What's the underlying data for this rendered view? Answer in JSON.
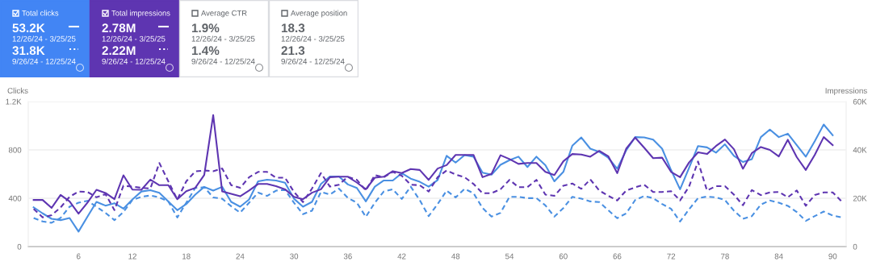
{
  "chart_data": [
    {
      "type": "other",
      "colors": [
        "#4285f4",
        "#5e35b1",
        "#ffffff",
        "#ffffff"
      ],
      "annotations": [
        "Total clicks",
        "53.2K",
        "12/26/24 - 3/25/25",
        "31.8K",
        "9/26/24 - 12/25/24",
        "Total impressions",
        "2.78M",
        "12/26/24 - 3/25/25",
        "2.22M",
        "9/26/24 - 12/25/24",
        "Average CTR",
        "1.9%",
        "12/26/24 - 3/25/25",
        "1.4%",
        "9/26/24 - 12/25/24",
        "Average position",
        "18.3",
        "12/26/24 - 3/25/25",
        "21.3",
        "9/26/24 - 12/25/24"
      ]
    },
    {
      "type": "line",
      "ylabel": "Clicks",
      "y2label": "Impressions",
      "xlim": [
        0.4,
        91.5
      ],
      "xticks": [
        6,
        12,
        18,
        24,
        30,
        36,
        42,
        48,
        54,
        60,
        66,
        72,
        78,
        84,
        90
      ],
      "ylim": [
        0,
        1200
      ],
      "yticks": [
        0,
        400,
        800,
        {
          "value": 1200,
          "label": "1.2K"
        }
      ],
      "y2lim": [
        0,
        60000
      ],
      "y2ticks": [
        {
          "value": 0,
          "label": "0"
        },
        {
          "value": 20000,
          "label": "20K"
        },
        {
          "value": 40000,
          "label": "40K"
        },
        {
          "value": 60000,
          "label": "60K"
        }
      ],
      "grid": "y",
      "marker": "none",
      "series": [
        {
          "color": "#4a90e2",
          "line_style": "dashed",
          "x": [
            1,
            2,
            3,
            4,
            5,
            6,
            7,
            8,
            9,
            10,
            11,
            12,
            13,
            14,
            15,
            16,
            17,
            18,
            19,
            20,
            21,
            22,
            23,
            24,
            25,
            26,
            27,
            28,
            29,
            30,
            31,
            32,
            33,
            34,
            35,
            36,
            37,
            38,
            39,
            40,
            41,
            42,
            43,
            44,
            45,
            46,
            47,
            48,
            49,
            50,
            51,
            52,
            53,
            54,
            55,
            56,
            57,
            58,
            59,
            60,
            61,
            62,
            63,
            64,
            65,
            66,
            67,
            68,
            69,
            70,
            71,
            72,
            73,
            74,
            75,
            76,
            77,
            78,
            79,
            80,
            81,
            82,
            83,
            84,
            85,
            86,
            87,
            88,
            89,
            90,
            91
          ],
          "values": [
            237,
            208,
            197,
            237,
            330,
            363,
            379,
            330,
            279,
            219,
            286,
            385,
            412,
            423,
            407,
            374,
            241,
            363,
            485,
            491,
            407,
            396,
            334,
            281,
            363,
            447,
            419,
            463,
            469,
            363,
            268,
            297,
            452,
            430,
            480,
            403,
            363,
            246,
            363,
            456,
            474,
            394,
            496,
            385,
            252,
            352,
            463,
            407,
            478,
            441,
            319,
            248,
            279,
            412,
            412,
            401,
            401,
            341,
            248,
            319,
            412,
            396,
            374,
            368,
            301,
            235,
            275,
            385,
            419,
            401,
            352,
            312,
            208,
            308,
            401,
            414,
            407,
            385,
            297,
            230,
            252,
            348,
            381,
            363,
            337,
            286,
            213,
            252,
            290,
            257,
            241
          ]
        },
        {
          "color": "#5e35b1",
          "line_style": "dashed",
          "axis": "y2",
          "x": [
            1,
            2,
            3,
            4,
            5,
            6,
            7,
            8,
            9,
            10,
            11,
            12,
            13,
            14,
            15,
            16,
            17,
            18,
            19,
            20,
            21,
            22,
            23,
            24,
            25,
            26,
            27,
            28,
            29,
            30,
            31,
            32,
            33,
            34,
            35,
            36,
            37,
            38,
            39,
            40,
            41,
            42,
            43,
            44,
            45,
            46,
            47,
            48,
            49,
            50,
            51,
            52,
            53,
            54,
            55,
            56,
            57,
            58,
            59,
            60,
            61,
            62,
            63,
            64,
            65,
            66,
            67,
            68,
            69,
            70,
            71,
            72,
            73,
            74,
            75,
            76,
            77,
            78,
            79,
            80,
            81,
            82,
            83,
            84,
            85,
            86,
            87,
            88,
            89,
            90,
            91
          ],
          "values": [
            15600,
            12100,
            13000,
            16200,
            20600,
            22800,
            22600,
            20400,
            21700,
            15100,
            25200,
            24800,
            24300,
            24000,
            34600,
            27000,
            19500,
            27000,
            31100,
            31500,
            31200,
            32300,
            25400,
            24300,
            28700,
            30900,
            30900,
            28500,
            28500,
            22600,
            18400,
            24000,
            30400,
            24800,
            25600,
            28900,
            27600,
            23200,
            29600,
            28700,
            30900,
            29300,
            25600,
            25400,
            22800,
            28700,
            31500,
            29800,
            28700,
            25900,
            22100,
            22100,
            23700,
            27600,
            24600,
            24600,
            27600,
            21500,
            21000,
            25200,
            26100,
            23900,
            27800,
            23200,
            21000,
            19100,
            23200,
            24500,
            25600,
            22600,
            22600,
            22900,
            19100,
            24800,
            35200,
            23200,
            25000,
            25000,
            21500,
            17100,
            23400,
            21300,
            22400,
            22600,
            20400,
            23200,
            16900,
            21300,
            22400,
            22400,
            18700
          ]
        },
        {
          "color": "#4a90e2",
          "line_style": "solid",
          "x": [
            1,
            2,
            3,
            4,
            5,
            6,
            7,
            8,
            9,
            10,
            11,
            12,
            13,
            14,
            15,
            16,
            17,
            18,
            19,
            20,
            21,
            22,
            23,
            24,
            25,
            26,
            27,
            28,
            29,
            30,
            31,
            32,
            33,
            34,
            35,
            36,
            37,
            38,
            39,
            40,
            41,
            42,
            43,
            44,
            45,
            46,
            47,
            48,
            49,
            50,
            51,
            52,
            53,
            54,
            55,
            56,
            57,
            58,
            59,
            60,
            61,
            62,
            63,
            64,
            65,
            66,
            67,
            68,
            69,
            70,
            71,
            72,
            73,
            74,
            75,
            76,
            77,
            78,
            79,
            80,
            81,
            82,
            83,
            84,
            85,
            86,
            87,
            88,
            89,
            90
          ],
          "values": [
            325,
            275,
            230,
            219,
            237,
            124,
            248,
            370,
            339,
            359,
            314,
            390,
            456,
            467,
            445,
            374,
            301,
            352,
            430,
            494,
            463,
            494,
            370,
            330,
            390,
            540,
            553,
            547,
            529,
            396,
            330,
            370,
            518,
            580,
            580,
            514,
            485,
            374,
            496,
            547,
            547,
            607,
            562,
            536,
            496,
            551,
            751,
            695,
            757,
            744,
            611,
            595,
            677,
            715,
            744,
            658,
            744,
            673,
            540,
            618,
            835,
            903,
            810,
            784,
            735,
            644,
            797,
            906,
            903,
            885,
            810,
            633,
            474,
            651,
            832,
            821,
            777,
            846,
            751,
            700,
            724,
            906,
            968,
            906,
            934,
            839,
            744,
            872,
            1010,
            921
          ]
        },
        {
          "color": "#5e35b1",
          "line_style": "solid",
          "axis": "y2",
          "x": [
            1,
            2,
            3,
            4,
            5,
            6,
            7,
            8,
            9,
            10,
            11,
            12,
            13,
            14,
            15,
            16,
            17,
            18,
            19,
            20,
            21,
            22,
            23,
            24,
            25,
            26,
            27,
            28,
            29,
            30,
            31,
            32,
            33,
            34,
            35,
            36,
            37,
            38,
            39,
            40,
            41,
            42,
            43,
            44,
            45,
            46,
            47,
            48,
            49,
            50,
            51,
            52,
            53,
            54,
            55,
            56,
            57,
            58,
            59,
            60,
            61,
            62,
            63,
            64,
            65,
            66,
            67,
            68,
            69,
            70,
            71,
            72,
            73,
            74,
            75,
            76,
            77,
            78,
            79,
            80,
            81,
            82,
            83,
            84,
            85,
            86,
            87,
            88,
            89,
            90
          ],
          "values": [
            19300,
            19300,
            16000,
            21400,
            18700,
            13600,
            18200,
            23500,
            22200,
            19600,
            29500,
            23600,
            23500,
            27700,
            25400,
            25400,
            19600,
            22900,
            24300,
            29600,
            54400,
            22800,
            21800,
            20800,
            23200,
            25900,
            25900,
            25000,
            23700,
            20600,
            19600,
            22300,
            23700,
            28700,
            28900,
            28900,
            26500,
            23700,
            28500,
            28900,
            31200,
            30400,
            32100,
            31700,
            27600,
            32300,
            33700,
            37900,
            37900,
            37900,
            28700,
            30100,
            37800,
            36200,
            34200,
            34600,
            34600,
            30900,
            29600,
            35300,
            38300,
            38100,
            37200,
            39600,
            37400,
            30400,
            40500,
            45100,
            40900,
            36600,
            36800,
            30900,
            28700,
            34800,
            39000,
            38300,
            41600,
            44300,
            40300,
            32200,
            38700,
            41200,
            40000,
            37300,
            44200,
            37000,
            31700,
            37900,
            45300,
            42000
          ]
        }
      ]
    }
  ]
}
